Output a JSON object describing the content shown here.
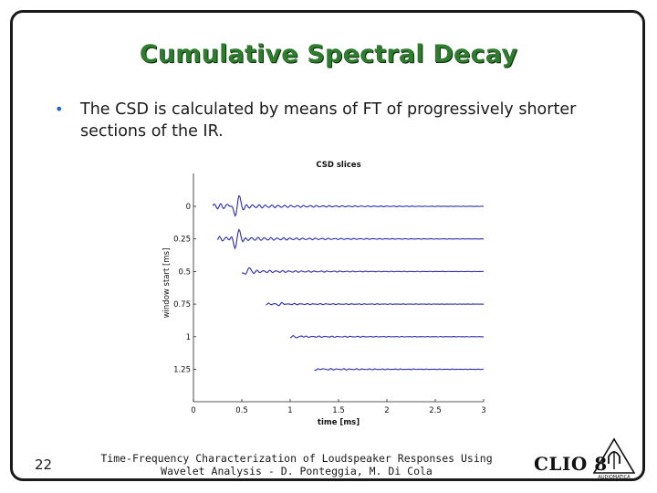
{
  "slide": {
    "title": "Cumulative Spectral Decay",
    "bullet": "The CSD is calculated by means of FT of progressively shorter sections of the IR.",
    "number": "22",
    "footer_line1": "Time-Frequency Characterization of Loudspeaker Responses Using",
    "footer_line2": "Wavelet Analysis - D. Ponteggia, M. Di Cola",
    "logo_text": "CLIO 8",
    "logo_subtext": "AUDIOMATICA"
  },
  "colors": {
    "title": "#2e7d2e",
    "bullet": "#1a5fd0",
    "trace": "#2b2bb0"
  },
  "chart_data": {
    "type": "line",
    "title": "CSD slices",
    "xlabel": "time [ms]",
    "ylabel": "window start [ms]",
    "xlim": [
      0,
      3
    ],
    "x_ticks": [
      "0",
      "0.5",
      "1",
      "1.5",
      "2",
      "2.5",
      "3"
    ],
    "y_ticks": [
      "0",
      "0.25",
      "0.5",
      "0.75",
      "1",
      "1.25"
    ],
    "grid": false,
    "series": [
      {
        "start": 0,
        "trace_begin": 0.2,
        "peak_at": 0.45,
        "amplitude": 0.9
      },
      {
        "start": 0.25,
        "trace_begin": 0.25,
        "peak_at": 0.45,
        "amplitude": 0.75
      },
      {
        "start": 0.5,
        "trace_begin": 0.5,
        "peak_at": 0.55,
        "amplitude": 0.35
      },
      {
        "start": 0.75,
        "trace_begin": 0.75,
        "peak_at": 0.9,
        "amplitude": 0.08
      },
      {
        "start": 1,
        "trace_begin": 1.0,
        "peak_at": 1.1,
        "amplitude": 0.06
      },
      {
        "start": 1.25,
        "trace_begin": 1.25,
        "peak_at": 1.3,
        "amplitude": 0.05
      }
    ]
  }
}
